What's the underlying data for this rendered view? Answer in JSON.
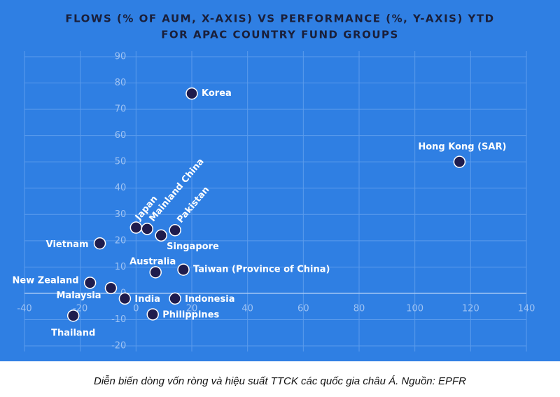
{
  "chart_data": {
    "type": "scatter",
    "title": [
      "FLOWS (% OF AUM, X-AXIS) VS PERFORMANCE (%, Y-AXIS) YTD",
      "FOR APAC COUNTRY FUND GROUPS"
    ],
    "labels": [
      "Korea",
      "Hong Kong (SAR)",
      "Japan",
      "Mainland China",
      "Singapore",
      "Pakistan",
      "Vietnam",
      "Australia",
      "Taiwan (Province of China)",
      "New Zealand",
      "Malaysia",
      "India",
      "Indonesia",
      "Thailand",
      "Philippines"
    ],
    "x": [
      20,
      116,
      0,
      4,
      9,
      14,
      -13,
      7,
      17,
      -16.5,
      -9,
      -4,
      14,
      -22.5,
      6
    ],
    "y": [
      76,
      50,
      25,
      24.5,
      22,
      24,
      19,
      8,
      9,
      4,
      2,
      -2,
      -2,
      -8.5,
      -8
    ],
    "color": "#1f1c4d",
    "xlim": [
      -40,
      140
    ],
    "xticks": [
      -40,
      -20,
      0,
      20,
      40,
      60,
      80,
      100,
      120,
      140
    ],
    "ylim": [
      -20,
      90
    ],
    "yticks": [
      -20,
      -10,
      0,
      10,
      20,
      30,
      40,
      50,
      60,
      70,
      80,
      90
    ],
    "grid": true
  },
  "caption": "Diễn biến dòng vốn ròng và hiệu suất TTCK các quốc gia châu Á. Nguồn: EPFR"
}
